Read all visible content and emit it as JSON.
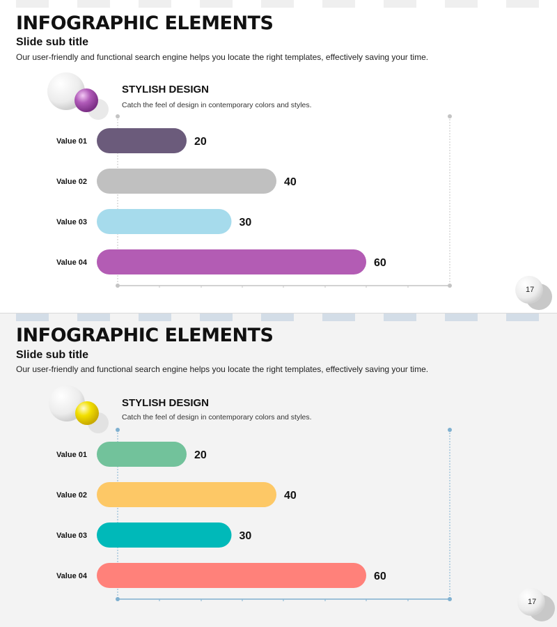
{
  "slides": [
    {
      "title": "INFOGRAPHIC ELEMENTS",
      "subtitle": "Slide sub title",
      "description": "Our user-friendly and functional search engine helps you locate the right templates, effectively saving your time.",
      "section_title": "STYLISH DESIGN",
      "section_desc": "Catch the feel of design in contemporary colors and styles.",
      "page_number": "17",
      "colors": {
        "background": "#ffffff",
        "strip": "#efefef",
        "axis": "#c4c4c4",
        "accent_ball": "#a64fb1"
      }
    },
    {
      "title": "INFOGRAPHIC ELEMENTS",
      "subtitle": "Slide sub title",
      "description": "Our user-friendly and functional search engine helps you locate the right templates, effectively saving your time.",
      "section_title": "STYLISH DESIGN",
      "section_desc": "Catch the feel of design in contemporary colors and styles.",
      "page_number": "17",
      "colors": {
        "background": "#f3f3f3",
        "strip": "#d3dde7",
        "axis": "#7fb0d0",
        "accent_ball": "#f2df00"
      }
    }
  ],
  "chart_data": [
    {
      "type": "bar",
      "orientation": "horizontal",
      "categories": [
        "Value 01",
        "Value 02",
        "Value 03",
        "Value 04"
      ],
      "values": [
        20,
        40,
        30,
        60
      ],
      "colors": [
        "#6b5b7b",
        "#c0c0c0",
        "#a6dbec",
        "#b35cb4"
      ],
      "xlim": [
        0,
        60
      ],
      "data_labels": true,
      "grid": false
    },
    {
      "type": "bar",
      "orientation": "horizontal",
      "categories": [
        "Value 01",
        "Value 02",
        "Value 03",
        "Value 04"
      ],
      "values": [
        20,
        40,
        30,
        60
      ],
      "colors": [
        "#72c29b",
        "#fdc866",
        "#00b9b9",
        "#ff817a"
      ],
      "xlim": [
        0,
        60
      ],
      "data_labels": true,
      "grid": false
    }
  ]
}
